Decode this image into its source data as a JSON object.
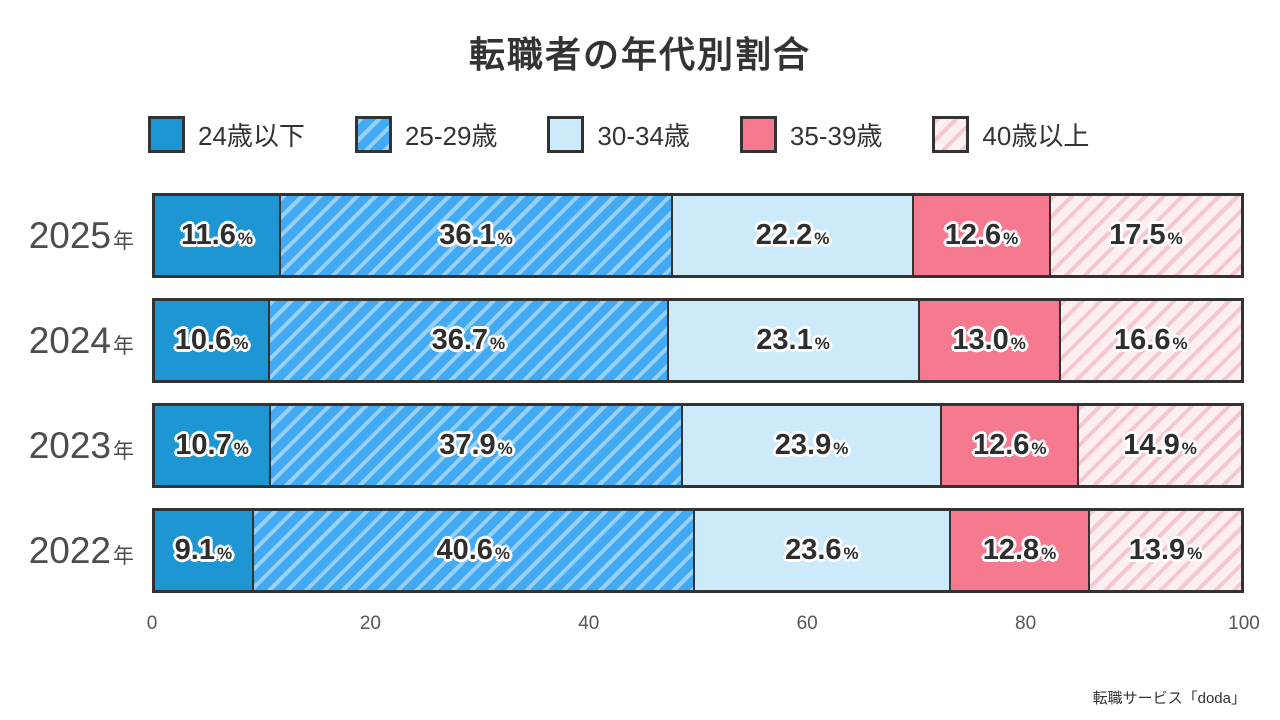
{
  "title": "転職者の年代別割合",
  "source": "転職サービス「doda」",
  "colors": {
    "border": "#333333",
    "label_text": "#2e2e2e",
    "label_outline": "#ffffff",
    "axis_text": "#555555",
    "year_text": "#4d4d4d"
  },
  "chart_data": {
    "type": "bar",
    "stacked": true,
    "orientation": "horizontal",
    "title": "転職者の年代別割合",
    "categories": [
      "2025",
      "2024",
      "2023",
      "2022"
    ],
    "category_suffix": "年",
    "series": [
      {
        "name": "24歳以下",
        "color": "#1d96d3",
        "pattern": "solid",
        "stripe_color": null,
        "values": [
          11.6,
          10.6,
          10.7,
          9.1
        ]
      },
      {
        "name": "25-29歳",
        "color": "#41aaf3",
        "pattern": "diagonal-stripes",
        "stripe_color": "rgba(255,255,255,0.45)",
        "values": [
          36.1,
          36.7,
          37.9,
          40.6
        ]
      },
      {
        "name": "30-34歳",
        "color": "#cdeafb",
        "pattern": "solid",
        "stripe_color": null,
        "values": [
          22.2,
          23.1,
          23.9,
          23.6
        ]
      },
      {
        "name": "35-39歳",
        "color": "#f57a90",
        "pattern": "solid",
        "stripe_color": null,
        "values": [
          12.6,
          13.0,
          12.6,
          12.8
        ]
      },
      {
        "name": "40歳以上",
        "color": "#fdeef0",
        "pattern": "diagonal-stripes",
        "stripe_color": "#f5c7cf",
        "values": [
          17.5,
          16.6,
          14.9,
          13.9
        ]
      }
    ],
    "value_suffix": "%",
    "xlim": [
      0,
      100
    ],
    "x_ticks": [
      0,
      20,
      40,
      60,
      80,
      100
    ],
    "legend_position": "top",
    "grid": false
  }
}
